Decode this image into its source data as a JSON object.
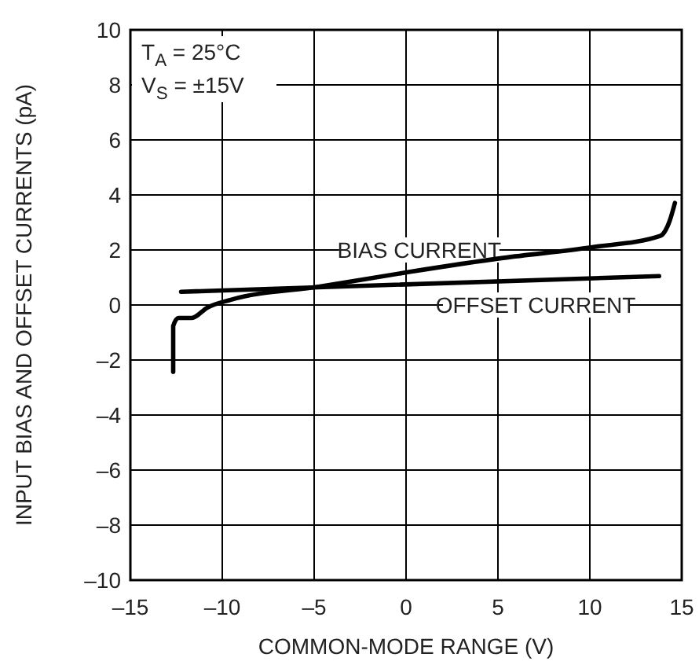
{
  "chart_data": {
    "type": "line",
    "xlabel": "COMMON-MODE RANGE (V)",
    "ylabel": "INPUT BIAS AND OFFSET CURRENTS (pA)",
    "annotations": [
      "T$_{A}$ = 25°C",
      "V$_{S}$ = ±15V"
    ],
    "xlim": [
      -15,
      15
    ],
    "ylim": [
      -10,
      10
    ],
    "xticks": [
      {
        "value": -15,
        "label": "–15"
      },
      {
        "value": -10,
        "label": "–10"
      },
      {
        "value": -5,
        "label": "–5"
      },
      0,
      5,
      10,
      15
    ],
    "yticks": [
      {
        "value": -10,
        "label": "–10"
      },
      {
        "value": -8,
        "label": "–8"
      },
      {
        "value": -6,
        "label": "–6"
      },
      {
        "value": -4,
        "label": "–4"
      },
      {
        "value": -2,
        "label": "–2"
      },
      0,
      2,
      4,
      6,
      8,
      10
    ],
    "grid": true,
    "marker": "none",
    "line_style": "solid",
    "series": [
      {
        "name": "BIAS CURRENT",
        "color": "#000000",
        "x": [
          -12.67,
          -12.67,
          -12.38,
          -11.67,
          -10.8,
          -9.53,
          -4.69,
          0.15,
          5.28,
          10.13,
          13.83,
          14.34,
          14.63
        ],
        "values": [
          -2.43,
          -0.76,
          -0.47,
          -0.47,
          -0.09,
          0.19,
          0.67,
          1.2,
          1.71,
          2.1,
          2.51,
          3.05,
          3.71
        ]
      },
      {
        "name": "OFFSET CURRENT",
        "color": "#000000",
        "x": [
          -12.24,
          13.77
        ],
        "values": [
          0.48,
          1.05
        ]
      }
    ]
  }
}
